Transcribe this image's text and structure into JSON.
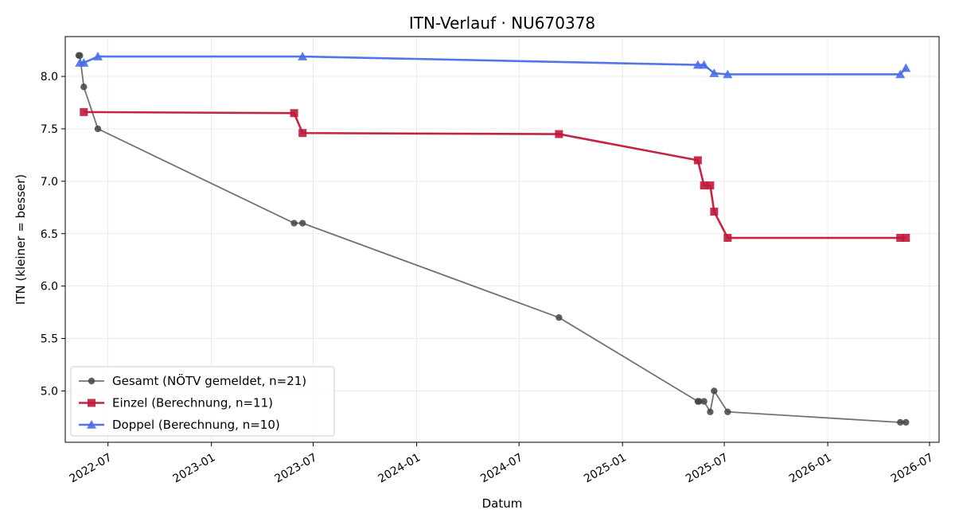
{
  "chart_data": {
    "type": "line",
    "title": "ITN-Verlauf · NU670378",
    "xlabel": "Datum",
    "ylabel": "ITN  (kleiner = besser)",
    "x_axis_type": "date",
    "xlim": [
      "2022-04-16",
      "2026-07-18"
    ],
    "ylim": [
      4.51,
      8.38
    ],
    "x_ticks": [
      "2022-07-01",
      "2023-01-01",
      "2023-07-01",
      "2024-01-01",
      "2024-07-01",
      "2025-01-01",
      "2025-07-01",
      "2026-01-01",
      "2026-07-01"
    ],
    "x_tick_labels": [
      "2022-07",
      "2023-01",
      "2023-07",
      "2024-01",
      "2024-07",
      "2025-01",
      "2025-07",
      "2026-01",
      "2026-07"
    ],
    "y_ticks": [
      5.0,
      5.5,
      6.0,
      6.5,
      7.0,
      7.5,
      8.0
    ],
    "y_tick_labels": [
      "5.0",
      "5.5",
      "6.0",
      "6.5",
      "7.0",
      "7.5",
      "8.0"
    ],
    "grid": true,
    "legend_position": "lower-left",
    "series": [
      {
        "name": "Gesamt (NÖTV gemeldet, n=21)",
        "color": "#444444",
        "marker": "circle",
        "points": [
          {
            "x": "2022-05-10",
            "y": 8.2
          },
          {
            "x": "2022-05-12",
            "y": 8.2
          },
          {
            "x": "2022-05-19",
            "y": 7.9
          },
          {
            "x": "2022-06-13",
            "y": 7.5
          },
          {
            "x": "2023-05-28",
            "y": 6.6
          },
          {
            "x": "2023-06-12",
            "y": 6.6
          },
          {
            "x": "2024-09-10",
            "y": 5.7
          },
          {
            "x": "2025-05-15",
            "y": 4.9
          },
          {
            "x": "2025-05-17",
            "y": 4.9
          },
          {
            "x": "2025-05-26",
            "y": 4.9
          },
          {
            "x": "2025-06-06",
            "y": 4.8
          },
          {
            "x": "2025-06-13",
            "y": 5.0
          },
          {
            "x": "2025-07-07",
            "y": 4.8
          },
          {
            "x": "2026-05-10",
            "y": 4.7
          },
          {
            "x": "2026-05-20",
            "y": 4.7
          }
        ]
      },
      {
        "name": "Einzel (Berechnung, n=11)",
        "color": "#c0183a",
        "marker": "square",
        "points": [
          {
            "x": "2022-05-19",
            "y": 7.66
          },
          {
            "x": "2023-05-28",
            "y": 7.65
          },
          {
            "x": "2023-06-12",
            "y": 7.46
          },
          {
            "x": "2024-09-10",
            "y": 7.45
          },
          {
            "x": "2025-05-15",
            "y": 7.2
          },
          {
            "x": "2025-05-26",
            "y": 6.96
          },
          {
            "x": "2025-06-06",
            "y": 6.96
          },
          {
            "x": "2025-06-13",
            "y": 6.71
          },
          {
            "x": "2025-07-07",
            "y": 6.46
          },
          {
            "x": "2026-05-10",
            "y": 6.46
          },
          {
            "x": "2026-05-20",
            "y": 6.46
          }
        ]
      },
      {
        "name": "Doppel (Berechnung, n=10)",
        "color": "#4a6ee8",
        "marker": "triangle",
        "points": [
          {
            "x": "2022-05-12",
            "y": 8.13
          },
          {
            "x": "2022-05-19",
            "y": 8.13
          },
          {
            "x": "2022-06-13",
            "y": 8.19
          },
          {
            "x": "2023-06-12",
            "y": 8.19
          },
          {
            "x": "2025-05-15",
            "y": 8.11
          },
          {
            "x": "2025-05-26",
            "y": 8.11
          },
          {
            "x": "2025-06-13",
            "y": 8.03
          },
          {
            "x": "2025-07-07",
            "y": 8.02
          },
          {
            "x": "2026-05-10",
            "y": 8.02
          },
          {
            "x": "2026-05-20",
            "y": 8.08
          }
        ]
      }
    ]
  }
}
